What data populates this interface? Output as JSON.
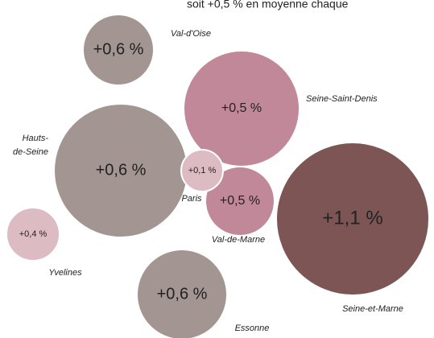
{
  "header": {
    "text": "soit +0,5 % en moyenne chaque"
  },
  "nodes": [
    {
      "label": [
        "Val-d'Oise"
      ],
      "value": "+0,6 %"
    },
    {
      "label": [
        "Seine-Saint-Denis"
      ],
      "value": "+0,5 %"
    },
    {
      "label": [
        "Hauts-",
        "de-Seine"
      ],
      "value": "+0,6 %"
    },
    {
      "label": [
        "Seine-et-Marne"
      ],
      "value": "+1,1 %"
    },
    {
      "label": [
        "Yvelines"
      ],
      "value": "+0,4 %"
    },
    {
      "label": [
        "Essonne"
      ],
      "value": "+0,6 %"
    },
    {
      "label": [
        "Val-de-Marne"
      ],
      "value": "+0,5 %"
    },
    {
      "label": [
        "Paris"
      ],
      "value": "+0,1 %"
    }
  ]
}
